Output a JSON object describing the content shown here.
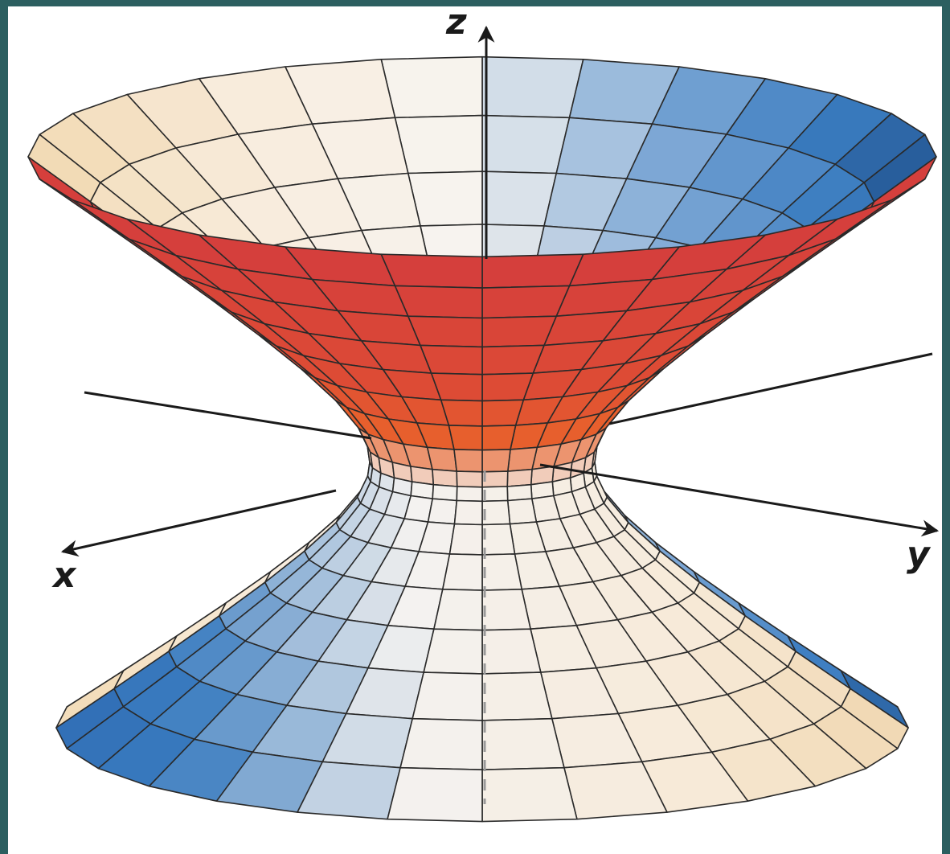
{
  "axis_labels": {
    "z": "z",
    "x": "x",
    "y": "y"
  }
}
